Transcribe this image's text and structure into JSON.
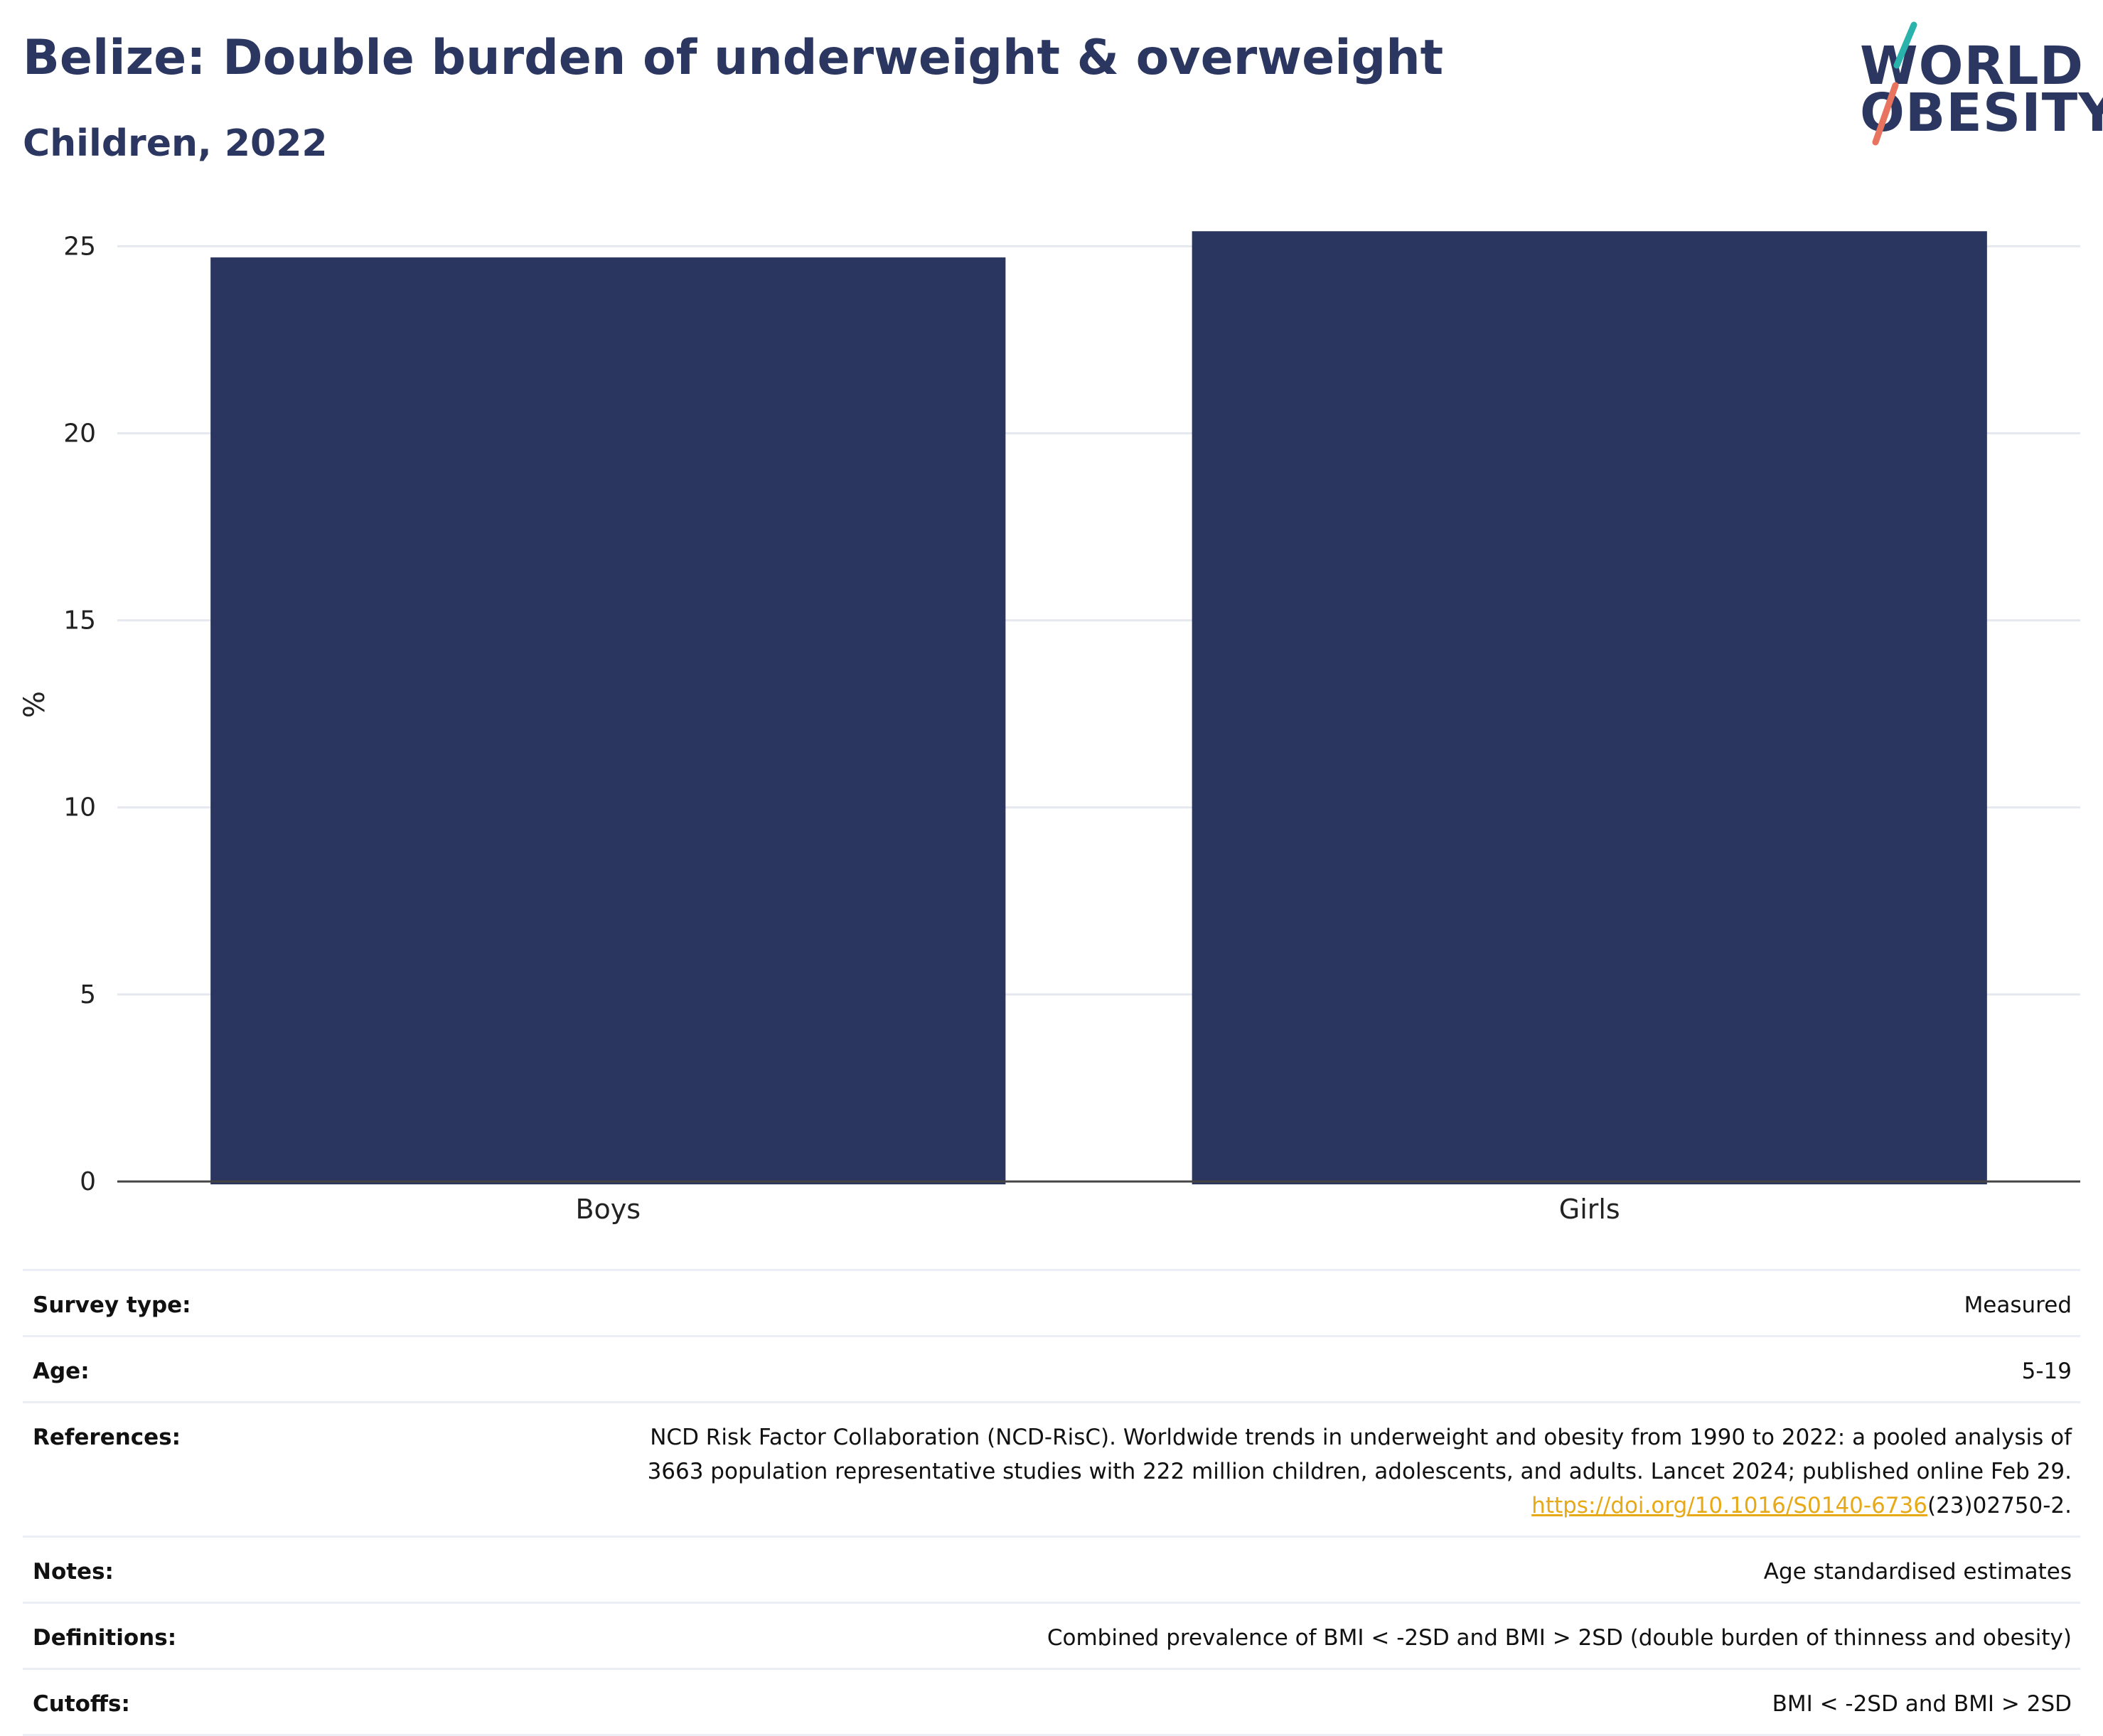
{
  "header": {
    "title": "Belize: Double burden of underweight & overweight",
    "subtitle": "Children, 2022"
  },
  "logo": {
    "line1": "WORLD",
    "line2": "OBESITY",
    "colors": {
      "text": "#2b3760",
      "teal": "#2ab3ad",
      "coral": "#e8735e"
    }
  },
  "chart_data": {
    "type": "bar",
    "categories": [
      "Boys",
      "Girls"
    ],
    "values": [
      24.7,
      25.4
    ],
    "title": "Belize: Double burden of underweight & overweight",
    "subtitle": "Children, 2022",
    "xlabel": "",
    "ylabel": "%",
    "ylim": [
      0,
      25.5
    ],
    "yticks": [
      0,
      5,
      10,
      15,
      20,
      25
    ],
    "grid": true,
    "legend": "none",
    "bar_color": "#2b3660"
  },
  "details": {
    "survey_type": {
      "label": "Survey type:",
      "value": "Measured"
    },
    "age": {
      "label": "Age:",
      "value": "5-19"
    },
    "references": {
      "label": "References:",
      "line1": "NCD Risk Factor Collaboration (NCD-RisC). Worldwide trends in underweight and obesity from 1990 to 2022: a pooled analysis of",
      "line2": "3663 population representative studies with 222 million children, adolescents, and adults. Lancet 2024; published online Feb 29.",
      "link": "https://doi.org/10.1016/S0140-6736",
      "link_suffix": "(23)02750-2."
    },
    "notes": {
      "label": "Notes:",
      "value": "Age standardised estimates"
    },
    "definitions": {
      "label": "Definitions:",
      "value": "Combined prevalence of BMI < -2SD and BMI > 2SD (double burden of thinness and obesity)"
    },
    "cutoffs": {
      "label": "Cutoffs:",
      "value": "BMI < -2SD and BMI > 2SD"
    }
  }
}
